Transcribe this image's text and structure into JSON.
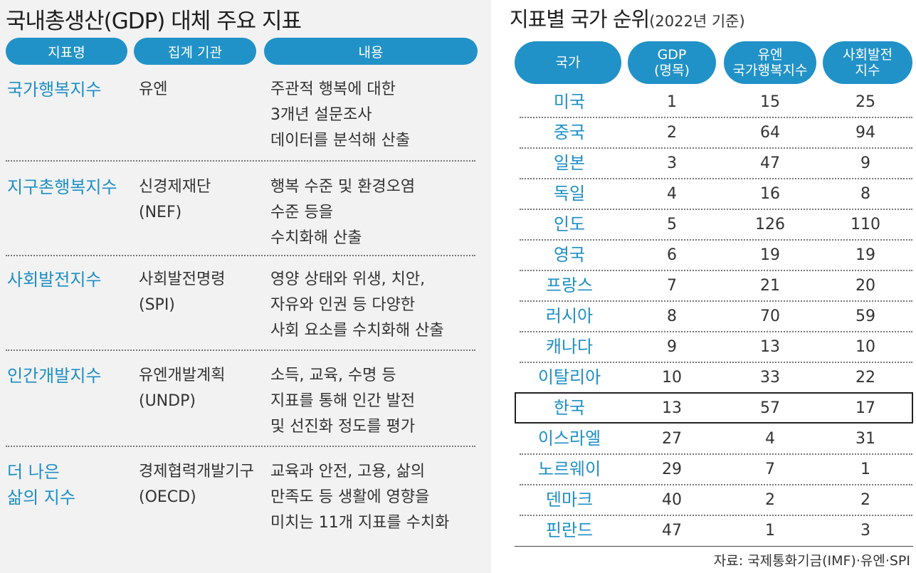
{
  "left": {
    "title": "국내총생산(GDP) 대체 주요 지표",
    "headers": [
      "지표명",
      "집계 기관",
      "내용"
    ],
    "rows": [
      {
        "name": "국가행복지수",
        "org": "유엔",
        "desc": "주관적 행복에 대한\n3개년 설문조사\n데이터를 분석해 산출"
      },
      {
        "name": "지구촌행복지수",
        "org": "신경제재단\n(NEF)",
        "desc": "행복 수준 및 환경오염\n수준 등을\n수치화해 산출"
      },
      {
        "name": "사회발전지수",
        "org": "사회발전명령\n(SPI)",
        "desc": "영양 상태와 위생, 치안,\n자유와 인권 등 다양한\n사회 요소를 수치화해 산출"
      },
      {
        "name": "인간개발지수",
        "org": "유엔개발계획\n(UNDP)",
        "desc": "소득, 교육, 수명 등\n지표를 통해 인간 발전\n및 선진화 정도를 평가"
      },
      {
        "name": "더 나은\n삶의 지수",
        "org": "경제협력개발기구\n(OECD)",
        "desc": "교육과 안전, 고용, 삶의\n만족도 등 생활에 영향을\n미치는 11개 지표를 수치화"
      }
    ]
  },
  "right": {
    "title": "지표별 국가 순위",
    "subtitle": "(2022년 기준)",
    "headers": [
      "국가",
      "GDP\n(명목)",
      "유엔\n국가행복지수",
      "사회발전\n지수"
    ],
    "rows": [
      {
        "country": "미국",
        "gdp": "1",
        "happiness": "15",
        "spi": "25"
      },
      {
        "country": "중국",
        "gdp": "2",
        "happiness": "64",
        "spi": "94"
      },
      {
        "country": "일본",
        "gdp": "3",
        "happiness": "47",
        "spi": "9"
      },
      {
        "country": "독일",
        "gdp": "4",
        "happiness": "16",
        "spi": "8"
      },
      {
        "country": "인도",
        "gdp": "5",
        "happiness": "126",
        "spi": "110"
      },
      {
        "country": "영국",
        "gdp": "6",
        "happiness": "19",
        "spi": "19"
      },
      {
        "country": "프랑스",
        "gdp": "7",
        "happiness": "21",
        "spi": "20"
      },
      {
        "country": "러시아",
        "gdp": "8",
        "happiness": "70",
        "spi": "59"
      },
      {
        "country": "캐나다",
        "gdp": "9",
        "happiness": "13",
        "spi": "10"
      },
      {
        "country": "이탈리아",
        "gdp": "10",
        "happiness": "33",
        "spi": "22"
      },
      {
        "country": "한국",
        "gdp": "13",
        "happiness": "57",
        "spi": "17"
      },
      {
        "country": "이스라엘",
        "gdp": "27",
        "happiness": "4",
        "spi": "31"
      },
      {
        "country": "노르웨이",
        "gdp": "29",
        "happiness": "7",
        "spi": "1"
      },
      {
        "country": "덴마크",
        "gdp": "40",
        "happiness": "2",
        "spi": "2"
      },
      {
        "country": "핀란드",
        "gdp": "47",
        "happiness": "1",
        "spi": "3"
      }
    ],
    "highlight_row": 10,
    "source": "자료: 국제통화기금(IMF)·유엔·SPI"
  },
  "colors": {
    "accent": "#2192c8",
    "name_text": "#1d8fc6",
    "left_bg": "#f2f2f2"
  }
}
